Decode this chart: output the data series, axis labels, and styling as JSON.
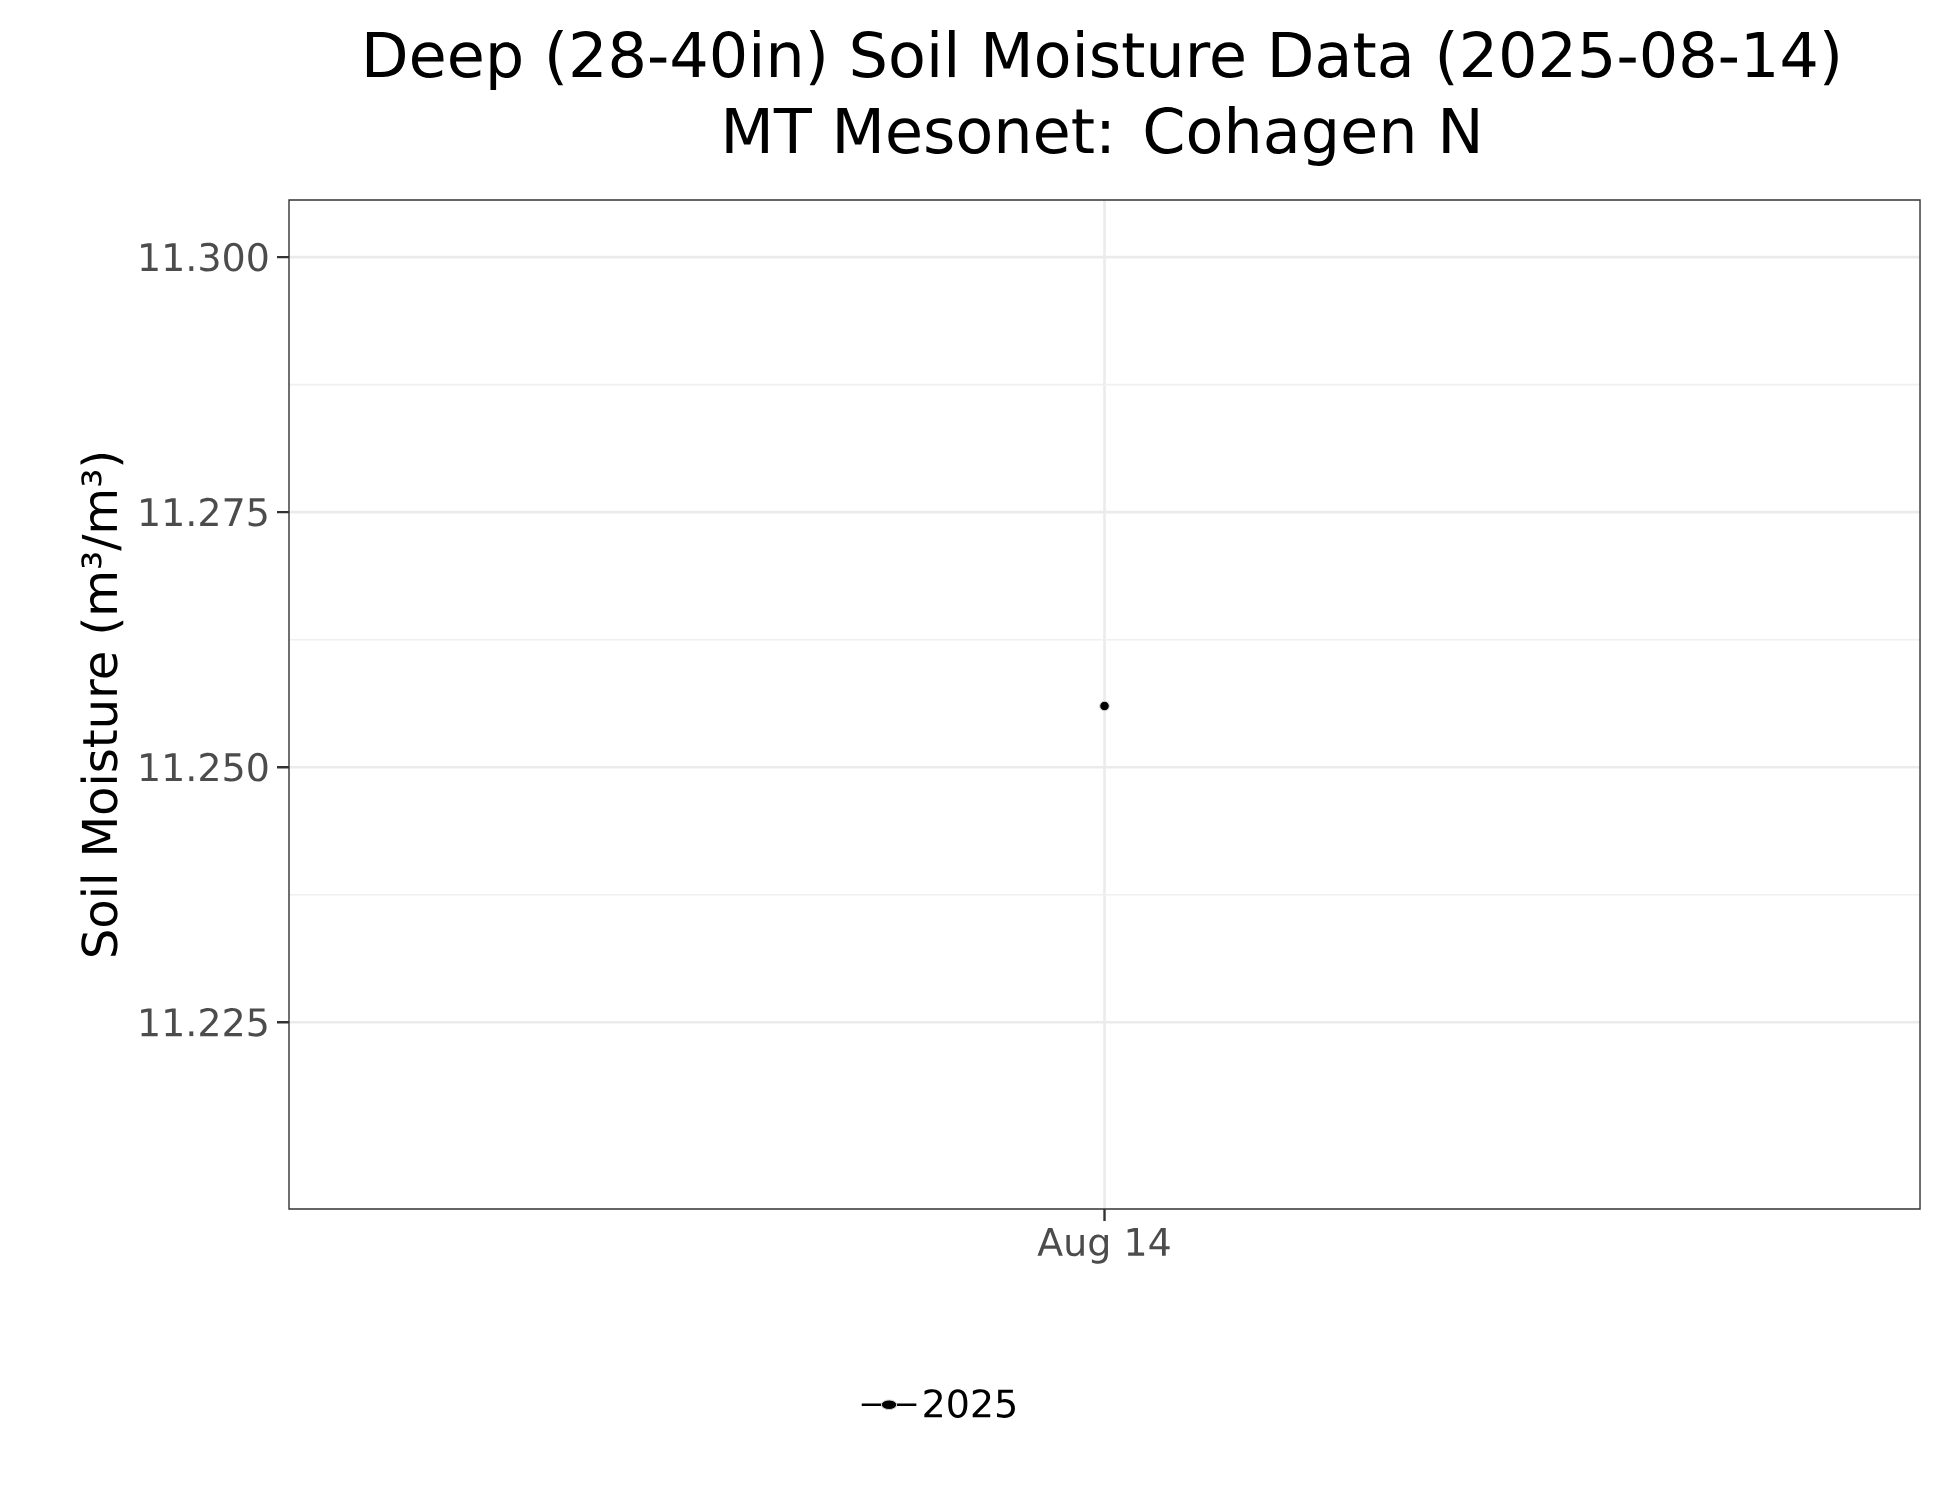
{
  "chart_data": {
    "type": "line",
    "title": "Deep (28-40in) Soil Moisture Data (2025-08-14)",
    "subtitle": "MT Mesonet: Cohagen N",
    "ylabel": "Soil Moisture (m³/m³)",
    "categories": [
      "Aug 14"
    ],
    "series": [
      {
        "name": "2025",
        "color": "#000000",
        "values": [
          11.256
        ]
      }
    ],
    "ylim": [
      11.2067,
      11.3056
    ],
    "yticks": [
      {
        "value": 11.225,
        "label": "11.225"
      },
      {
        "value": 11.25,
        "label": "11.250"
      },
      {
        "value": 11.275,
        "label": "11.275"
      },
      {
        "value": 11.3,
        "label": "11.300"
      }
    ],
    "grid": true,
    "legend": "bottom",
    "marker": "circle",
    "line_style": "solid"
  }
}
